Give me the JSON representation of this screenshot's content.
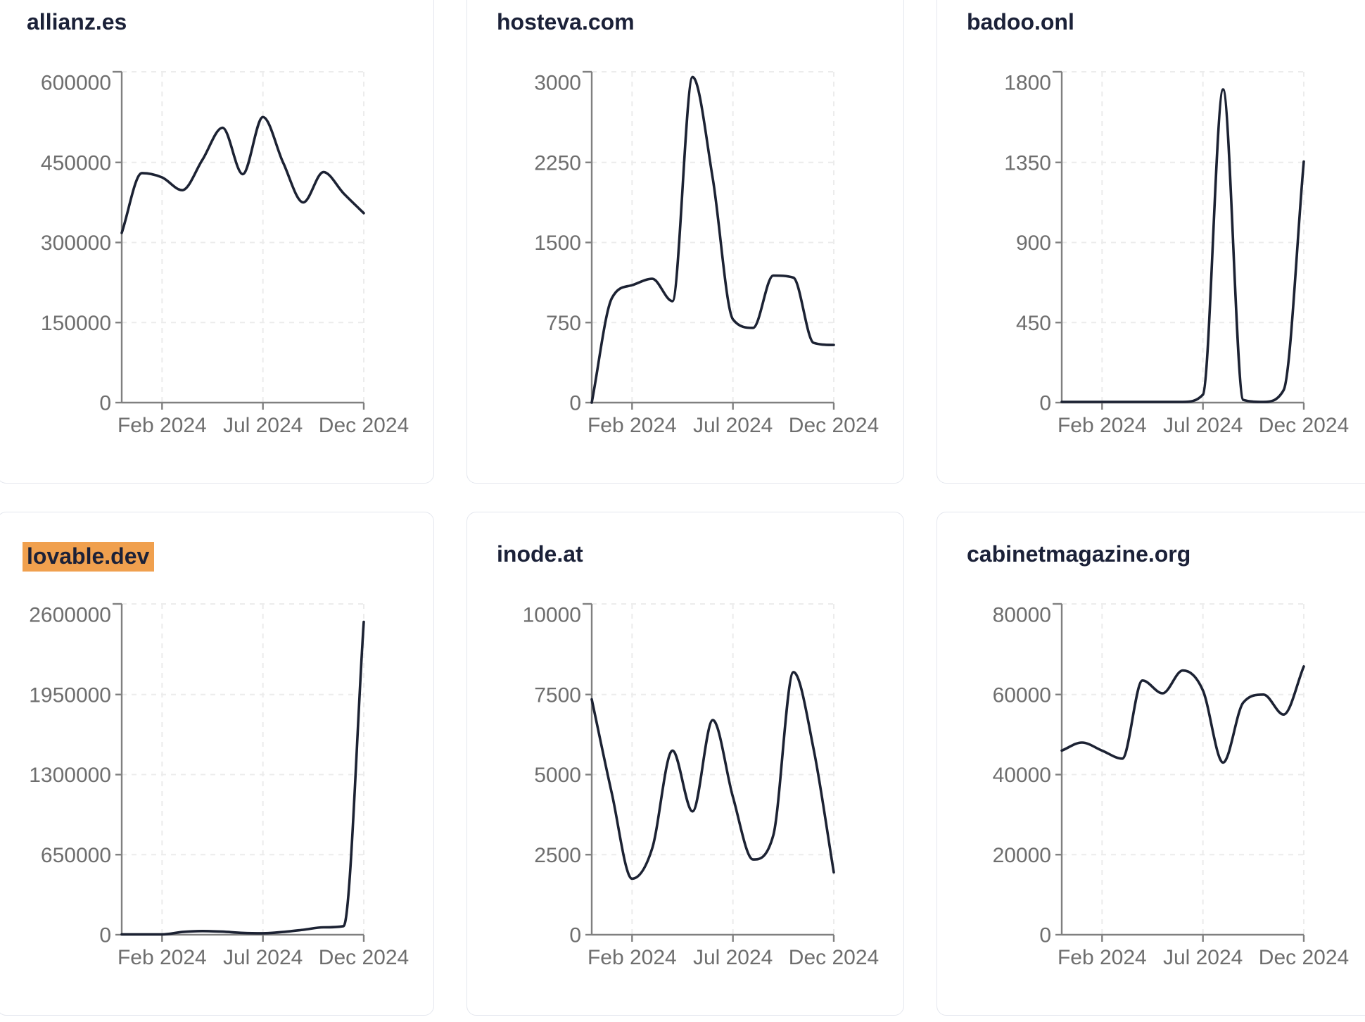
{
  "style": {
    "page_background": "#ffffff",
    "card_border_color": "#e4e7ee",
    "title_color": "#1b2138",
    "line_color": "#1c2233",
    "axis_color": "#808080",
    "tick_label_color": "#6e6e6e",
    "grid_color": "#ececec",
    "highlight_color": "#f0a04e"
  },
  "cards": [
    {
      "title": "allianz.es",
      "highlighted": false,
      "chart_index": 0
    },
    {
      "title": "hosteva.com",
      "highlighted": false,
      "chart_index": 1
    },
    {
      "title": "badoo.onl",
      "highlighted": false,
      "chart_index": 2
    },
    {
      "title": "lovable.dev",
      "highlighted": true,
      "chart_index": 3
    },
    {
      "title": "inode.at",
      "highlighted": false,
      "chart_index": 4
    },
    {
      "title": "cabinetmagazine.org",
      "highlighted": false,
      "chart_index": 5
    }
  ],
  "chart_data": [
    {
      "type": "line",
      "title": "allianz.es",
      "x": [
        "Dec 2023",
        "Jan 2024",
        "Feb 2024",
        "Mar 2024",
        "Apr 2024",
        "May 2024",
        "Jun 2024",
        "Jul 2024",
        "Aug 2024",
        "Sep 2024",
        "Oct 2024",
        "Nov 2024",
        "Dec 2024"
      ],
      "values": [
        318000,
        430000,
        422000,
        398000,
        455000,
        515000,
        428000,
        535000,
        450000,
        375000,
        432000,
        392000,
        355000
      ],
      "y_ticks": [
        0,
        150000,
        300000,
        450000,
        600000
      ],
      "ylim": [
        0,
        620000
      ],
      "x_tick_labels": [
        "Feb 2024",
        "Jul 2024",
        "Dec 2024"
      ],
      "x_tick_indices": [
        2,
        7,
        12
      ],
      "grid": "dashed",
      "legend": "none"
    },
    {
      "type": "line",
      "title": "hosteva.com",
      "x": [
        "Dec 2023",
        "Jan 2024",
        "Feb 2024",
        "Mar 2024",
        "Apr 2024",
        "May 2024",
        "Jun 2024",
        "Jul 2024",
        "Aug 2024",
        "Sep 2024",
        "Oct 2024",
        "Nov 2024",
        "Dec 2024"
      ],
      "values": [
        0,
        980,
        1100,
        1160,
        950,
        3050,
        2100,
        780,
        700,
        1190,
        1170,
        560,
        540
      ],
      "y_ticks": [
        0,
        750,
        1500,
        2250,
        3000
      ],
      "ylim": [
        0,
        3100
      ],
      "x_tick_labels": [
        "Feb 2024",
        "Jul 2024",
        "Dec 2024"
      ],
      "x_tick_indices": [
        2,
        7,
        12
      ],
      "grid": "dashed",
      "legend": "none"
    },
    {
      "type": "line",
      "title": "badoo.onl",
      "x": [
        "Dec 2023",
        "Jan 2024",
        "Feb 2024",
        "Mar 2024",
        "Apr 2024",
        "May 2024",
        "Jun 2024",
        "Jul 2024",
        "Aug 2024",
        "Sep 2024",
        "Oct 2024",
        "Nov 2024",
        "Dec 2024"
      ],
      "values": [
        4,
        4,
        4,
        4,
        4,
        4,
        4,
        45,
        1760,
        15,
        4,
        70,
        1355
      ],
      "y_ticks": [
        0,
        450,
        900,
        1350,
        1800
      ],
      "ylim": [
        0,
        1860
      ],
      "x_tick_labels": [
        "Feb 2024",
        "Jul 2024",
        "Dec 2024"
      ],
      "x_tick_indices": [
        2,
        7,
        12
      ],
      "grid": "dashed",
      "legend": "none"
    },
    {
      "type": "line",
      "title": "lovable.dev",
      "x": [
        "Dec 2023",
        "Jan 2024",
        "Feb 2024",
        "Mar 2024",
        "Apr 2024",
        "May 2024",
        "Jun 2024",
        "Jul 2024",
        "Aug 2024",
        "Sep 2024",
        "Oct 2024",
        "Nov 2024",
        "Dec 2024"
      ],
      "values": [
        2000,
        2000,
        2000,
        22000,
        30000,
        25000,
        15000,
        12000,
        22000,
        40000,
        60000,
        70000,
        2540000
      ],
      "y_ticks": [
        0,
        650000,
        1300000,
        1950000,
        2600000
      ],
      "ylim": [
        0,
        2690000
      ],
      "x_tick_labels": [
        "Feb 2024",
        "Jul 2024",
        "Dec 2024"
      ],
      "x_tick_indices": [
        2,
        7,
        12
      ],
      "grid": "dashed",
      "legend": "none"
    },
    {
      "type": "line",
      "title": "inode.at",
      "x": [
        "Dec 2023",
        "Jan 2024",
        "Feb 2024",
        "Mar 2024",
        "Apr 2024",
        "May 2024",
        "Jun 2024",
        "Jul 2024",
        "Aug 2024",
        "Sep 2024",
        "Oct 2024",
        "Nov 2024",
        "Dec 2024"
      ],
      "values": [
        7350,
        4400,
        1750,
        2700,
        5750,
        3850,
        6700,
        4300,
        2350,
        3100,
        8200,
        5800,
        1950
      ],
      "y_ticks": [
        0,
        2500,
        5000,
        7500,
        10000
      ],
      "ylim": [
        0,
        10350
      ],
      "x_tick_labels": [
        "Feb 2024",
        "Jul 2024",
        "Dec 2024"
      ],
      "x_tick_indices": [
        2,
        7,
        12
      ],
      "grid": "dashed",
      "legend": "none"
    },
    {
      "type": "line",
      "title": "cabinetmagazine.org",
      "x": [
        "Dec 2023",
        "Jan 2024",
        "Feb 2024",
        "Mar 2024",
        "Apr 2024",
        "May 2024",
        "Jun 2024",
        "Jul 2024",
        "Aug 2024",
        "Sep 2024",
        "Oct 2024",
        "Nov 2024",
        "Dec 2024"
      ],
      "values": [
        46000,
        48000,
        46000,
        44000,
        63500,
        60300,
        66000,
        61000,
        43000,
        58000,
        60000,
        55000,
        67000
      ],
      "y_ticks": [
        0,
        20000,
        40000,
        60000,
        80000
      ],
      "ylim": [
        0,
        82700
      ],
      "x_tick_labels": [
        "Feb 2024",
        "Jul 2024",
        "Dec 2024"
      ],
      "x_tick_indices": [
        2,
        7,
        12
      ],
      "grid": "dashed",
      "legend": "none"
    }
  ]
}
